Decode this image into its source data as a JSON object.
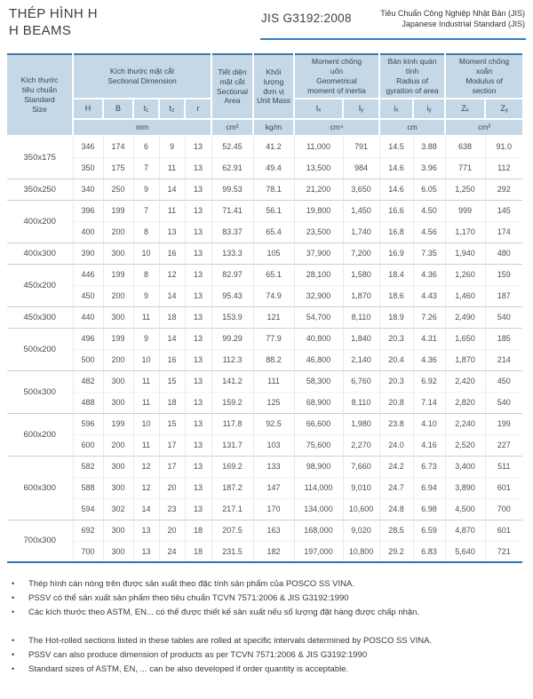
{
  "page": {
    "title_vi": "THÉP HÌNH H",
    "title_en": "H BEAMS",
    "standard_code": "JIS G3192:2008",
    "standard_name_vi": "Tiêu Chuẩn Công Nghiệp Nhật Bản (JIS)",
    "standard_name_en": "Japanese Industrial Standard (JIS)"
  },
  "colors": {
    "accent_blue": "#2e7fc1",
    "header_bg": "#c4d8e8",
    "top_rule": "#44749f",
    "bottom_rule": "#2e74b5"
  },
  "table": {
    "header": {
      "size": "Kích thước\ntiêu chuẩn\nStandard\nSize",
      "sectional_dimension": "Kích thước mặt cắt\nSectional Dimension",
      "sectional_area": "Tiết diện\nmặt cắt\nSectional\nArea",
      "unit_mass": "Khối\nlượng\nđơn vị\nUnit Mass",
      "inertia": "Moment chống\nuốn\nGeometrical\nmoment of inertia",
      "gyration": "Bán kính quán\ntính\nRadius of\ngyration of area",
      "modulus": "Moment chống\nxoắn\nModulus of\nsection",
      "cols": [
        "H",
        "B",
        "t₁",
        "t₂",
        "r",
        "Iₓ",
        "Iᵧ",
        "iₓ",
        "iᵧ",
        "Zₓ",
        "Zᵧ"
      ],
      "units": {
        "mm": "mm",
        "area": "cm²",
        "mass": "kg/m",
        "inertia": "cm⁴",
        "gyration": "cm",
        "modulus": "cm³"
      }
    },
    "groups": [
      {
        "size": "350x175",
        "rows": [
          [
            "346",
            "174",
            "6",
            "9",
            "13",
            "52.45",
            "41.2",
            "11,000",
            "791",
            "14.5",
            "3.88",
            "638",
            "91.0"
          ],
          [
            "350",
            "175",
            "7",
            "11",
            "13",
            "62.91",
            "49.4",
            "13,500",
            "984",
            "14.6",
            "3.96",
            "771",
            "112"
          ]
        ]
      },
      {
        "size": "350x250",
        "rows": [
          [
            "340",
            "250",
            "9",
            "14",
            "13",
            "99.53",
            "78.1",
            "21,200",
            "3,650",
            "14.6",
            "6.05",
            "1,250",
            "292"
          ]
        ]
      },
      {
        "size": "400x200",
        "rows": [
          [
            "396",
            "199",
            "7",
            "11",
            "13",
            "71.41",
            "56.1",
            "19,800",
            "1,450",
            "16.6",
            "4.50",
            "999",
            "145"
          ],
          [
            "400",
            "200",
            "8",
            "13",
            "13",
            "83.37",
            "65.4",
            "23,500",
            "1,740",
            "16.8",
            "4.56",
            "1,170",
            "174"
          ]
        ]
      },
      {
        "size": "400x300",
        "rows": [
          [
            "390",
            "300",
            "10",
            "16",
            "13",
            "133.3",
            "105",
            "37,900",
            "7,200",
            "16.9",
            "7.35",
            "1,940",
            "480"
          ]
        ]
      },
      {
        "size": "450x200",
        "rows": [
          [
            "446",
            "199",
            "8",
            "12",
            "13",
            "82.97",
            "65.1",
            "28,100",
            "1,580",
            "18.4",
            "4.36",
            "1,260",
            "159"
          ],
          [
            "450",
            "200",
            "9",
            "14",
            "13",
            "95.43",
            "74.9",
            "32,900",
            "1,870",
            "18.6",
            "4.43",
            "1,460",
            "187"
          ]
        ]
      },
      {
        "size": "450x300",
        "rows": [
          [
            "440",
            "300",
            "11",
            "18",
            "13",
            "153.9",
            "121",
            "54,700",
            "8,110",
            "18.9",
            "7.26",
            "2,490",
            "540"
          ]
        ]
      },
      {
        "size": "500x200",
        "rows": [
          [
            "496",
            "199",
            "9",
            "14",
            "13",
            "99.29",
            "77.9",
            "40,800",
            "1,840",
            "20.3",
            "4.31",
            "1,650",
            "185"
          ],
          [
            "500",
            "200",
            "10",
            "16",
            "13",
            "112.3",
            "88.2",
            "46,800",
            "2,140",
            "20.4",
            "4.36",
            "1,870",
            "214"
          ]
        ]
      },
      {
        "size": "500x300",
        "rows": [
          [
            "482",
            "300",
            "11",
            "15",
            "13",
            "141.2",
            "111",
            "58,300",
            "6,760",
            "20.3",
            "6.92",
            "2,420",
            "450"
          ],
          [
            "488",
            "300",
            "11",
            "18",
            "13",
            "159.2",
            "125",
            "68,900",
            "8,110",
            "20.8",
            "7.14",
            "2,820",
            "540"
          ]
        ]
      },
      {
        "size": "600x200",
        "rows": [
          [
            "596",
            "199",
            "10",
            "15",
            "13",
            "117.8",
            "92.5",
            "66,600",
            "1,980",
            "23.8",
            "4.10",
            "2,240",
            "199"
          ],
          [
            "600",
            "200",
            "11",
            "17",
            "13",
            "131.7",
            "103",
            "75,600",
            "2,270",
            "24.0",
            "4.16",
            "2,520",
            "227"
          ]
        ]
      },
      {
        "size": "600x300",
        "rows": [
          [
            "582",
            "300",
            "12",
            "17",
            "13",
            "169.2",
            "133",
            "98,900",
            "7,660",
            "24.2",
            "6.73",
            "3,400",
            "511"
          ],
          [
            "588",
            "300",
            "12",
            "20",
            "13",
            "187.2",
            "147",
            "114,000",
            "9,010",
            "24.7",
            "6.94",
            "3,890",
            "601"
          ],
          [
            "594",
            "302",
            "14",
            "23",
            "13",
            "217.1",
            "170",
            "134,000",
            "10,600",
            "24.8",
            "6.98",
            "4,500",
            "700"
          ]
        ]
      },
      {
        "size": "700x300",
        "rows": [
          [
            "692",
            "300",
            "13",
            "20",
            "18",
            "207.5",
            "163",
            "168,000",
            "9,020",
            "28.5",
            "6.59",
            "4,870",
            "601"
          ],
          [
            "700",
            "300",
            "13",
            "24",
            "18",
            "231.5",
            "182",
            "197,000",
            "10,800",
            "29.2",
            "6.83",
            "5,640",
            "721"
          ]
        ]
      }
    ]
  },
  "notes": {
    "bullet": "•",
    "vi": [
      "Thép hình cán nóng trên được sản xuất theo đặc tính sản phẩm của POSCO SS VINA.",
      "PSSV có thể sản xuất sản phẩm theo tiêu chuẩn TCVN 7571:2006 & JIS G3192:1990",
      "Các kích thước theo ASTM, EN... có thể được thiết kế sản xuất nếu số lượng đặt hàng được chấp nhận."
    ],
    "en": [
      "The Hot-rolled sections listed in these tables are rolled at specific intervals determined by POSCO SS VINA.",
      "PSSV can also produce dimension of products as per TCVN 7571:2006 & JIS G3192:1990",
      "Standard sizes of ASTM, EN, ... can be also developed if order quantity is acceptable."
    ]
  }
}
